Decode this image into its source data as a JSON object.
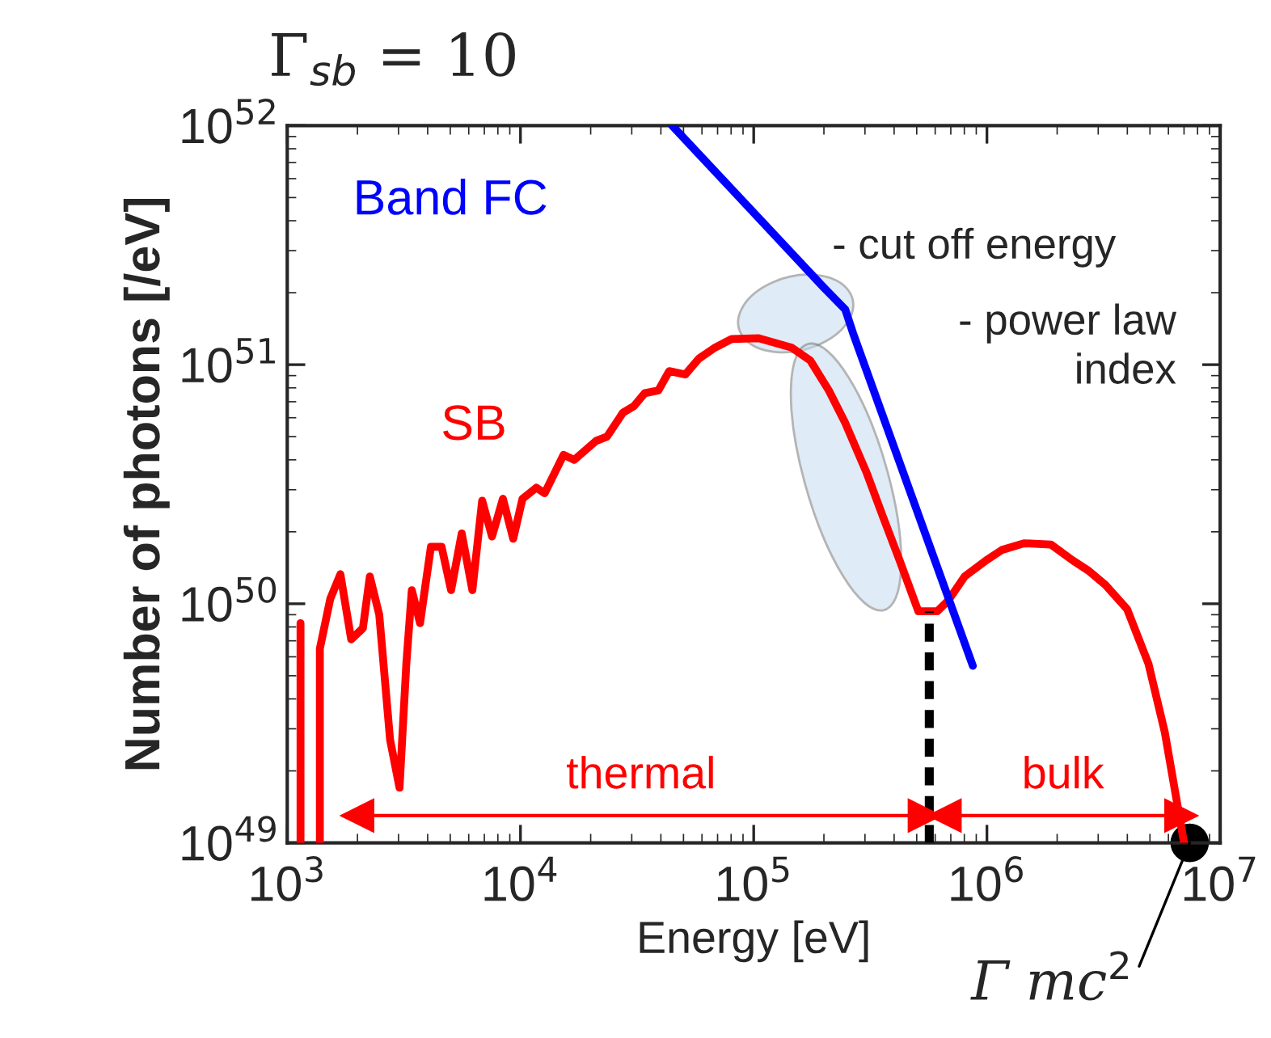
{
  "chart_data": {
    "type": "line",
    "title": "Γ$_{sb}$ = 10",
    "xlabel": "Energy [eV]",
    "ylabel": "Number of photons [/eV]",
    "log": "xy",
    "xlim": [
      1000,
      10000000
    ],
    "ylim": [
      1e+49,
      1e+52
    ],
    "xticks": [
      {
        "value": 1000,
        "label": "10$^{3}$"
      },
      {
        "value": 10000,
        "label": "10$^{4}$"
      },
      {
        "value": 100000,
        "label": "10$^{5}$"
      },
      {
        "value": 1000000,
        "label": "10$^{6}$"
      },
      {
        "value": 10000000,
        "label": "10$^{7}$"
      }
    ],
    "yticks": [
      {
        "value": 1e+49,
        "label": "10$^{49}$"
      },
      {
        "value": 1e+50,
        "label": "10$^{50}$"
      },
      {
        "value": 1e+51,
        "label": "10$^{51}$"
      },
      {
        "value": 1e+52,
        "label": "10$^{52}$"
      }
    ],
    "grid": false,
    "series": [
      {
        "name": "SB",
        "color": "#ff0000",
        "x": [
          1140,
          1140,
          null,
          1380,
          1380,
          1530,
          1690,
          1880,
          2110,
          2260,
          2480,
          2760,
          3030,
          3240,
          3420,
          3710,
          4130,
          4590,
          5040,
          5600,
          6220,
          6850,
          7550,
          8410,
          9310,
          10200,
          11700,
          12700,
          15300,
          17000,
          21100,
          23500,
          27500,
          30600,
          34100,
          39000,
          43400,
          50900,
          58200,
          68400,
          80400,
          105000,
          145000,
          175000,
          210000,
          247000,
          306000,
          359000,
          422000,
          508000,
          612000,
          682000,
          802000,
          993000,
          1160000,
          1440000,
          1880000,
          2330000,
          2740000,
          3220000,
          3990000,
          4930000,
          5790000,
          7000000
        ],
        "values": [
          1e+49,
          8.3e+49,
          null,
          1e+49,
          6.5e+49,
          1.05e+50,
          1.33e+50,
          7.1e+49,
          7.9e+49,
          1.3e+50,
          9e+49,
          2.7e+49,
          1.7e+49,
          5.6e+49,
          1.14e+50,
          8.3e+49,
          1.73e+50,
          1.73e+50,
          1.14e+50,
          1.97e+50,
          1.14e+50,
          2.7e+50,
          1.91e+50,
          2.75e+50,
          1.87e+50,
          2.75e+50,
          3.06e+50,
          2.9e+50,
          4.2e+50,
          4e+50,
          4.8e+50,
          5e+50,
          6.3e+50,
          6.7e+50,
          7.6e+50,
          7.8e+50,
          9.4e+50,
          9.1e+50,
          1.06e+51,
          1.18e+51,
          1.28e+51,
          1.29e+51,
          1.18e+51,
          1.04e+51,
          7.8e+50,
          5.7e+50,
          3.5e+50,
          2.3e+50,
          1.52e+50,
          9.3e+49,
          9.3e+49,
          1.03e+50,
          1.3e+50,
          1.52e+50,
          1.68e+50,
          1.79e+50,
          1.77e+50,
          1.52e+50,
          1.37e+50,
          1.2e+50,
          9.5e+49,
          5.6e+49,
          2.9e+49,
          1e+49
        ]
      },
      {
        "name": "Band FC",
        "color": "#0000ff",
        "x": [
          44700,
          200000,
          247000,
          267000,
          870000
        ],
        "values": [
          1e+52,
          2.1e+51,
          1.7e+51,
          1.35e+51,
          5.5e+49
        ]
      },
      {
        "color": "#000000",
        "line_style": "dashed",
        "x": [
          566000,
          566000
        ],
        "values": [
          1e+49,
          9.3e+49
        ]
      },
      {
        "color": "#000000",
        "type": "scatter",
        "marker": "circle",
        "x": [
          7400000
        ],
        "values": [
          1e+49
        ]
      },
      {
        "name": "thermal",
        "color": "#ff0000",
        "marker": "triangle",
        "x": [
          2000,
          540000
        ],
        "values": [
          1.3e+49,
          1.3e+49
        ]
      },
      {
        "name": "bulk",
        "color": "#ff0000",
        "marker": "triangle",
        "x": [
          660000,
          6800000
        ],
        "values": [
          1.3e+49,
          1.3e+49
        ]
      }
    ],
    "annotations": [
      "- cut off energy",
      "- power law\nindex",
      {
        "text": "Γ mc$^{2}$",
        "x": 7400000,
        "y": 1e+49
      }
    ]
  }
}
